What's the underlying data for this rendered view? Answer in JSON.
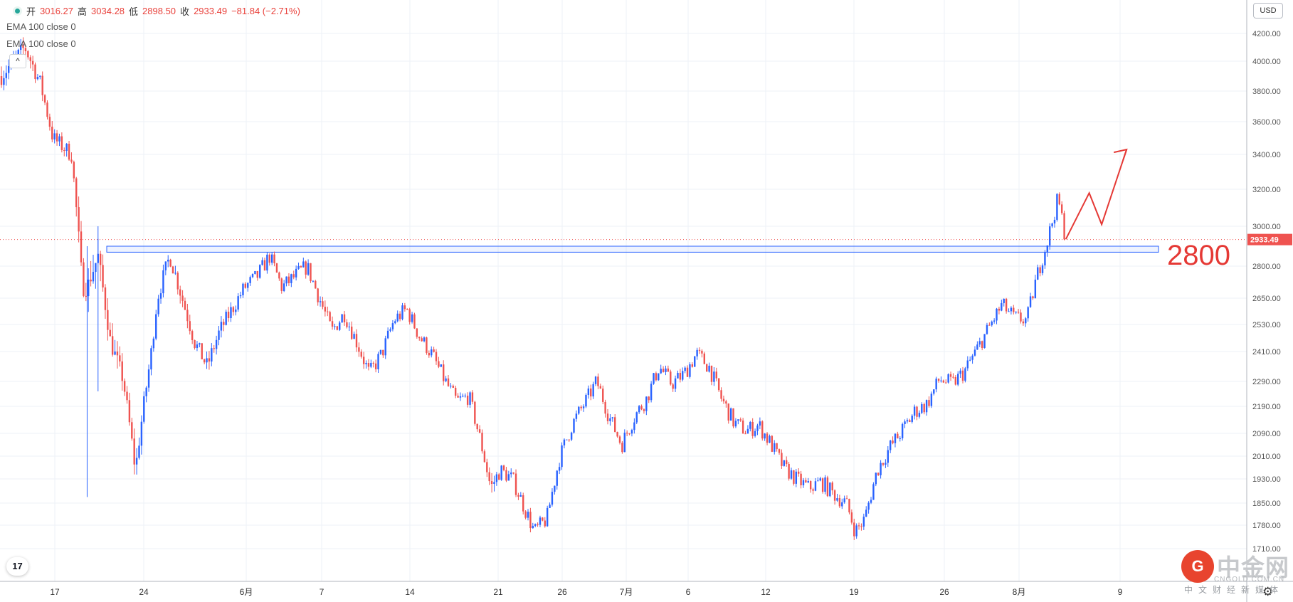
{
  "legend": {
    "open_label": "开",
    "open": "3016.27",
    "high_label": "高",
    "high": "3034.28",
    "low_label": "低",
    "low": "2898.50",
    "close_label": "收",
    "close": "2933.49",
    "change": "−81.84 (−2.71%)",
    "ema1": "EMA 100 close 0",
    "ema2": "EMA 100 close 0",
    "collapse_glyph": "^"
  },
  "currency": "USD",
  "logo": "17",
  "watermark": {
    "brand": "中金网",
    "url": "CNGOLD.COM.CN",
    "tagline": "中文财经新媒体",
    "logo_glyph": "G"
  },
  "colors": {
    "up": "#2962ff",
    "down": "#ef5350",
    "current": "#ef5350",
    "zone": "#2962ff",
    "annotation": "#e53935",
    "grid": "#edf2f7"
  },
  "icons": {
    "settings": "gear-icon",
    "collapse": "chevron-up-icon",
    "brand": "tradingview-logo-icon"
  },
  "chart_data": {
    "type": "candlestick",
    "symbol_unit": "USD",
    "y_ticks": [
      1710,
      1780,
      1850,
      1930,
      2010,
      2090,
      2190,
      2290,
      2410,
      2530,
      2650,
      2800,
      3000,
      3200,
      3400,
      3600,
      3800,
      4000,
      4200
    ],
    "y_tick_labels": [
      "1710.00",
      "1780.00",
      "1850.00",
      "1930.00",
      "2010.00",
      "2090.00",
      "2190.00",
      "2290.00",
      "2410.00",
      "2530.00",
      "2650.00",
      "2800.00",
      "3000.00",
      "3200.00",
      "3400.00",
      "3600.00",
      "3800.00",
      "4000.00",
      "4200.00"
    ],
    "x_labels": [
      "17",
      "24",
      "6月",
      "7",
      "14",
      "21",
      "26",
      "7月",
      "6",
      "12",
      "19",
      "26",
      "8月",
      "9"
    ],
    "current_price": 2933.49,
    "current_price_label": "2933.49",
    "support_zone": [
      2870,
      2900
    ],
    "annotation_text": "2800",
    "projection": [
      {
        "t": 68.3,
        "p": 2935
      },
      {
        "t": 69.8,
        "p": 3180
      },
      {
        "t": 70.6,
        "p": 3010
      },
      {
        "t": 72.2,
        "p": 3430
      }
    ],
    "candles_approx": [
      {
        "t": 0.0,
        "c": 3900,
        "lo": 3600,
        "hi": 4250
      },
      {
        "t": 1.5,
        "c": 4100,
        "lo": 3700,
        "hi": 4250
      },
      {
        "t": 2.5,
        "c": 3850,
        "lo": 3650,
        "hi": 4050
      },
      {
        "t": 3.3,
        "c": 3500,
        "lo": 3250,
        "hi": 3600
      },
      {
        "t": 4.5,
        "c": 3400,
        "lo": 3150,
        "hi": 3550
      },
      {
        "t": 5.2,
        "c": 2700,
        "lo": 2450,
        "hi": 3100
      },
      {
        "t": 5.5,
        "c": 2700,
        "lo": 1870,
        "hi": 2900
      },
      {
        "t": 6.2,
        "c": 2850,
        "lo": 2250,
        "hi": 3000
      },
      {
        "t": 7.0,
        "c": 2450,
        "lo": 2100,
        "hi": 2700
      },
      {
        "t": 7.8,
        "c": 2300,
        "lo": 2050,
        "hi": 2450
      },
      {
        "t": 8.6,
        "c": 1960,
        "lo": 1880,
        "hi": 2200
      },
      {
        "t": 8.8,
        "c": 2050,
        "lo": 1730,
        "hi": 2150
      },
      {
        "t": 9.6,
        "c": 2400,
        "lo": 2200,
        "hi": 2500
      },
      {
        "t": 10.0,
        "c": 2650,
        "lo": 2500,
        "hi": 2750
      },
      {
        "t": 10.8,
        "c": 2850,
        "lo": 2600,
        "hi": 2900
      },
      {
        "t": 11.6,
        "c": 2650,
        "lo": 2550,
        "hi": 2900
      },
      {
        "t": 12.4,
        "c": 2450,
        "lo": 2400,
        "hi": 2650
      },
      {
        "t": 13.2,
        "c": 2350,
        "lo": 2180,
        "hi": 2500
      },
      {
        "t": 14.0,
        "c": 2500,
        "lo": 2300,
        "hi": 2600
      },
      {
        "t": 14.8,
        "c": 2600,
        "lo": 2500,
        "hi": 2700
      },
      {
        "t": 15.6,
        "c": 2700,
        "lo": 2600,
        "hi": 2750
      },
      {
        "t": 16.4,
        "c": 2750,
        "lo": 2650,
        "hi": 2800
      },
      {
        "t": 17.2,
        "c": 2850,
        "lo": 2750,
        "hi": 2900
      },
      {
        "t": 18.0,
        "c": 2700,
        "lo": 2630,
        "hi": 2820
      },
      {
        "t": 18.8,
        "c": 2750,
        "lo": 2650,
        "hi": 2820
      },
      {
        "t": 19.6,
        "c": 2800,
        "lo": 2700,
        "hi": 2830
      },
      {
        "t": 20.4,
        "c": 2650,
        "lo": 2550,
        "hi": 2800
      },
      {
        "t": 21.2,
        "c": 2500,
        "lo": 2300,
        "hi": 2600
      },
      {
        "t": 22.0,
        "c": 2580,
        "lo": 2480,
        "hi": 2640
      },
      {
        "t": 22.8,
        "c": 2450,
        "lo": 2300,
        "hi": 2550
      },
      {
        "t": 23.6,
        "c": 2320,
        "lo": 2260,
        "hi": 2430
      },
      {
        "t": 24.4,
        "c": 2400,
        "lo": 2310,
        "hi": 2480
      },
      {
        "t": 25.2,
        "c": 2550,
        "lo": 2450,
        "hi": 2600
      },
      {
        "t": 26.0,
        "c": 2600,
        "lo": 2550,
        "hi": 2640
      },
      {
        "t": 26.8,
        "c": 2480,
        "lo": 2420,
        "hi": 2580
      },
      {
        "t": 27.6,
        "c": 2400,
        "lo": 2340,
        "hi": 2480
      },
      {
        "t": 28.4,
        "c": 2300,
        "lo": 2200,
        "hi": 2380
      },
      {
        "t": 29.2,
        "c": 2210,
        "lo": 2150,
        "hi": 2280
      },
      {
        "t": 30.0,
        "c": 2230,
        "lo": 2150,
        "hi": 2280
      },
      {
        "t": 30.8,
        "c": 2050,
        "lo": 1980,
        "hi": 2150
      },
      {
        "t": 31.4,
        "c": 1900,
        "lo": 1700,
        "hi": 2000
      },
      {
        "t": 32.0,
        "c": 1960,
        "lo": 1880,
        "hi": 2010
      },
      {
        "t": 32.8,
        "c": 1930,
        "lo": 1860,
        "hi": 2010
      },
      {
        "t": 33.6,
        "c": 1830,
        "lo": 1780,
        "hi": 1880
      },
      {
        "t": 34.2,
        "c": 1760,
        "lo": 1720,
        "hi": 1820
      },
      {
        "t": 35.0,
        "c": 1800,
        "lo": 1760,
        "hi": 1880
      },
      {
        "t": 35.8,
        "c": 2000,
        "lo": 1900,
        "hi": 2050
      },
      {
        "t": 36.6,
        "c": 2120,
        "lo": 2050,
        "hi": 2180
      },
      {
        "t": 37.4,
        "c": 2200,
        "lo": 2120,
        "hi": 2240
      },
      {
        "t": 38.2,
        "c": 2290,
        "lo": 2200,
        "hi": 2300
      },
      {
        "t": 39.0,
        "c": 2150,
        "lo": 2080,
        "hi": 2250
      },
      {
        "t": 39.8,
        "c": 2050,
        "lo": 2000,
        "hi": 2120
      },
      {
        "t": 40.6,
        "c": 2150,
        "lo": 2080,
        "hi": 2200
      },
      {
        "t": 41.4,
        "c": 2220,
        "lo": 2150,
        "hi": 2250
      },
      {
        "t": 42.2,
        "c": 2350,
        "lo": 2250,
        "hi": 2400
      },
      {
        "t": 43.0,
        "c": 2280,
        "lo": 2200,
        "hi": 2350
      },
      {
        "t": 43.8,
        "c": 2320,
        "lo": 2250,
        "hi": 2380
      },
      {
        "t": 44.6,
        "c": 2400,
        "lo": 2300,
        "hi": 2440
      },
      {
        "t": 45.4,
        "c": 2350,
        "lo": 2250,
        "hi": 2420
      },
      {
        "t": 46.2,
        "c": 2220,
        "lo": 2100,
        "hi": 2300
      },
      {
        "t": 47.0,
        "c": 2130,
        "lo": 2070,
        "hi": 2200
      },
      {
        "t": 47.8,
        "c": 2100,
        "lo": 2050,
        "hi": 2170
      },
      {
        "t": 48.6,
        "c": 2120,
        "lo": 2070,
        "hi": 2160
      },
      {
        "t": 49.4,
        "c": 2050,
        "lo": 1990,
        "hi": 2100
      },
      {
        "t": 50.2,
        "c": 1970,
        "lo": 1880,
        "hi": 2030
      },
      {
        "t": 51.0,
        "c": 1930,
        "lo": 1870,
        "hi": 1990
      },
      {
        "t": 51.8,
        "c": 1900,
        "lo": 1850,
        "hi": 1950
      },
      {
        "t": 52.6,
        "c": 1920,
        "lo": 1860,
        "hi": 1960
      },
      {
        "t": 53.4,
        "c": 1880,
        "lo": 1840,
        "hi": 1990
      },
      {
        "t": 54.2,
        "c": 1850,
        "lo": 1800,
        "hi": 1900
      },
      {
        "t": 54.8,
        "c": 1760,
        "lo": 1720,
        "hi": 1820
      },
      {
        "t": 55.4,
        "c": 1800,
        "lo": 1730,
        "hi": 1850
      },
      {
        "t": 56.2,
        "c": 1960,
        "lo": 1900,
        "hi": 2000
      },
      {
        "t": 57.0,
        "c": 2040,
        "lo": 1980,
        "hi": 2080
      },
      {
        "t": 57.8,
        "c": 2100,
        "lo": 2040,
        "hi": 2140
      },
      {
        "t": 58.6,
        "c": 2170,
        "lo": 2120,
        "hi": 2200
      },
      {
        "t": 59.4,
        "c": 2200,
        "lo": 2150,
        "hi": 2230
      },
      {
        "t": 60.2,
        "c": 2300,
        "lo": 2250,
        "hi": 2400
      },
      {
        "t": 61.0,
        "c": 2280,
        "lo": 2200,
        "hi": 2340
      },
      {
        "t": 61.8,
        "c": 2330,
        "lo": 2280,
        "hi": 2380
      },
      {
        "t": 62.6,
        "c": 2420,
        "lo": 2350,
        "hi": 2470
      },
      {
        "t": 63.4,
        "c": 2520,
        "lo": 2450,
        "hi": 2560
      },
      {
        "t": 64.2,
        "c": 2620,
        "lo": 2550,
        "hi": 2670
      },
      {
        "t": 65.0,
        "c": 2560,
        "lo": 2480,
        "hi": 2640
      },
      {
        "t": 65.8,
        "c": 2550,
        "lo": 2470,
        "hi": 2600
      },
      {
        "t": 66.4,
        "c": 2740,
        "lo": 2550,
        "hi": 2790
      },
      {
        "t": 67.2,
        "c": 2950,
        "lo": 2780,
        "hi": 3000
      },
      {
        "t": 67.8,
        "c": 3150,
        "lo": 3000,
        "hi": 3200
      },
      {
        "t": 68.3,
        "c": 2933,
        "lo": 2900,
        "hi": 3040
      }
    ]
  }
}
